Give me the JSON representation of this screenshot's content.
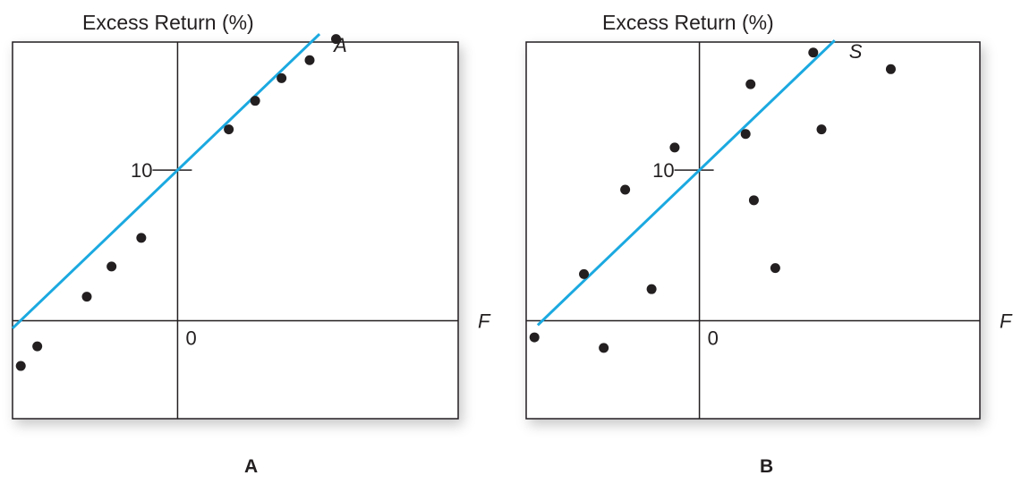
{
  "chart_data": [
    {
      "type": "scatter",
      "title": "",
      "ylabel": "Excess Return (%)",
      "xlabel": "F",
      "panel_label": "A",
      "origin_label": "0",
      "y_tick_label": "10",
      "line_label": "A",
      "xlim": [
        -10,
        17
      ],
      "ylim": [
        -6.5,
        18.5
      ],
      "grid": false,
      "line": {
        "intercept": 10,
        "slope": 1.05,
        "color": "#1ba9e0"
      },
      "points": {
        "x": [
          -9.5,
          -8.5,
          -5.5,
          -4.0,
          -2.2,
          3.1,
          4.7,
          6.3,
          8.0,
          9.6
        ],
        "y": [
          -3.0,
          -1.7,
          1.6,
          3.6,
          5.5,
          12.7,
          14.6,
          16.1,
          17.3,
          18.7
        ]
      }
    },
    {
      "type": "scatter",
      "title": "",
      "ylabel": "Excess Return (%)",
      "xlabel": "F",
      "panel_label": "B",
      "origin_label": "0",
      "y_tick_label": "10",
      "line_label": "S",
      "xlim": [
        -10.5,
        17
      ],
      "ylim": [
        -6.5,
        18.5
      ],
      "grid": false,
      "line": {
        "intercept": 10,
        "slope": 1.05,
        "color": "#1ba9e0"
      },
      "points": {
        "x": [
          -10.0,
          -7.0,
          -5.8,
          -4.5,
          -2.9,
          -1.5,
          2.8,
          3.3,
          3.1,
          4.6,
          6.9,
          7.4,
          11.6
        ],
        "y": [
          -1.1,
          3.1,
          -1.8,
          8.7,
          2.1,
          11.5,
          12.4,
          8.0,
          15.7,
          3.5,
          17.8,
          12.7,
          16.7
        ]
      }
    }
  ]
}
